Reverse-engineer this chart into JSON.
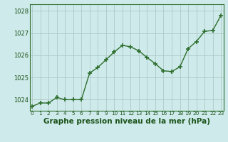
{
  "x": [
    0,
    1,
    2,
    3,
    4,
    5,
    6,
    7,
    8,
    9,
    10,
    11,
    12,
    13,
    14,
    15,
    16,
    17,
    18,
    19,
    20,
    21,
    22,
    23
  ],
  "y": [
    1023.7,
    1023.85,
    1023.85,
    1024.1,
    1024.0,
    1024.0,
    1024.0,
    1025.2,
    1025.45,
    1025.8,
    1026.15,
    1026.45,
    1026.38,
    1026.2,
    1025.9,
    1025.62,
    1025.3,
    1025.27,
    1025.48,
    1026.3,
    1026.62,
    1027.08,
    1027.12,
    1027.8
  ],
  "line_color": "#2d6e2d",
  "marker": "+",
  "marker_size": 5,
  "marker_lw": 1.2,
  "line_width": 1.0,
  "bg_color": "#ceeaea",
  "grid_color": "#b0c8c8",
  "title": "Graphe pression niveau de la mer (hPa)",
  "title_color": "#1a5218",
  "title_fontsize": 7.5,
  "tick_color": "#1a5218",
  "tick_fontsize": 6.0,
  "xtick_fontsize": 5.2,
  "ylim": [
    1023.5,
    1028.3
  ],
  "yticks": [
    1024,
    1025,
    1026,
    1027,
    1028
  ],
  "xticks": [
    0,
    1,
    2,
    3,
    4,
    5,
    6,
    7,
    8,
    9,
    10,
    11,
    12,
    13,
    14,
    15,
    16,
    17,
    18,
    19,
    20,
    21,
    22,
    23
  ],
  "xtick_labels": [
    "0",
    "1",
    "2",
    "3",
    "4",
    "5",
    "6",
    "7",
    "8",
    "9",
    "10",
    "11",
    "12",
    "13",
    "14",
    "15",
    "16",
    "17",
    "18",
    "19",
    "20",
    "21",
    "22",
    "23"
  ],
  "border_color": "#2d6e2d",
  "xlim": [
    -0.3,
    23.3
  ]
}
